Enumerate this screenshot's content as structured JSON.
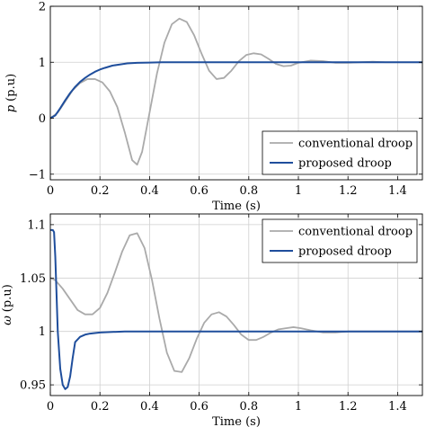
{
  "chart_data": [
    {
      "type": "line",
      "xlabel": "Time (s)",
      "ylabel": "p (p.u)",
      "ylabel_symbol": "p",
      "ylabel_unit": "(p.u)",
      "xlim": [
        0,
        1.5
      ],
      "ylim": [
        -1.1,
        2.0
      ],
      "xticks": [
        0,
        0.2,
        0.4,
        0.6,
        0.8,
        1,
        1.2,
        1.4
      ],
      "xtick_labels": [
        "0",
        "0.2",
        "0.4",
        "0.6",
        "0.8",
        "1",
        "1.2",
        "1.4"
      ],
      "yticks": [
        -1,
        0,
        1,
        2
      ],
      "ytick_labels": [
        "−1",
        "0",
        "1",
        "2"
      ],
      "grid": true,
      "legend_position": "bottom-right",
      "series": [
        {
          "name": "conventional droop",
          "color": "#aaaaaa",
          "x": [
            0,
            0.03,
            0.06,
            0.09,
            0.12,
            0.15,
            0.18,
            0.21,
            0.24,
            0.27,
            0.3,
            0.33,
            0.35,
            0.37,
            0.4,
            0.43,
            0.46,
            0.49,
            0.52,
            0.55,
            0.58,
            0.61,
            0.64,
            0.67,
            0.7,
            0.73,
            0.76,
            0.79,
            0.82,
            0.85,
            0.88,
            0.91,
            0.94,
            0.97,
            1.0,
            1.05,
            1.1,
            1.15,
            1.2,
            1.25,
            1.3,
            1.35,
            1.4,
            1.45,
            1.5
          ],
          "y": [
            0,
            0.1,
            0.3,
            0.5,
            0.63,
            0.7,
            0.7,
            0.64,
            0.48,
            0.2,
            -0.25,
            -0.75,
            -0.83,
            -0.6,
            0.1,
            0.8,
            1.35,
            1.68,
            1.78,
            1.72,
            1.48,
            1.15,
            0.85,
            0.7,
            0.72,
            0.85,
            1.02,
            1.13,
            1.16,
            1.14,
            1.06,
            0.97,
            0.93,
            0.94,
            0.99,
            1.03,
            1.02,
            0.99,
            0.99,
            1.0,
            1.01,
            1.0,
            1.0,
            1.0,
            1.0
          ]
        },
        {
          "name": "proposed droop",
          "color": "#1f4e9c",
          "x": [
            0,
            0.02,
            0.04,
            0.06,
            0.08,
            0.1,
            0.12,
            0.14,
            0.16,
            0.18,
            0.2,
            0.22,
            0.25,
            0.28,
            0.31,
            0.35,
            0.4,
            0.45,
            0.5,
            0.6,
            0.8,
            1.0,
            1.2,
            1.5
          ],
          "y": [
            0,
            0.05,
            0.18,
            0.32,
            0.45,
            0.56,
            0.65,
            0.72,
            0.78,
            0.83,
            0.87,
            0.9,
            0.94,
            0.96,
            0.98,
            0.99,
            0.995,
            1.0,
            1.0,
            1.0,
            1.0,
            1.0,
            1.0,
            1.0
          ]
        }
      ]
    },
    {
      "type": "line",
      "xlabel": "Time (s)",
      "ylabel": "ω (p.u)",
      "ylabel_symbol": "ω",
      "ylabel_unit": "(p.u)",
      "xlim": [
        0,
        1.5
      ],
      "ylim": [
        0.94,
        1.11
      ],
      "xticks": [
        0,
        0.2,
        0.4,
        0.6,
        0.8,
        1,
        1.2,
        1.4
      ],
      "xtick_labels": [
        "0",
        "0.2",
        "0.4",
        "0.6",
        "0.8",
        "1",
        "1.2",
        "1.4"
      ],
      "yticks": [
        0.95,
        1,
        1.05,
        1.1
      ],
      "ytick_labels": [
        "0.95",
        "1",
        "1.05",
        "1.1"
      ],
      "grid": true,
      "legend_position": "top-right",
      "series": [
        {
          "name": "conventional droop",
          "color": "#aaaaaa",
          "x": [
            0,
            0.02,
            0.05,
            0.08,
            0.11,
            0.14,
            0.17,
            0.2,
            0.23,
            0.26,
            0.29,
            0.32,
            0.35,
            0.38,
            0.41,
            0.44,
            0.47,
            0.5,
            0.53,
            0.56,
            0.59,
            0.62,
            0.65,
            0.68,
            0.71,
            0.74,
            0.77,
            0.8,
            0.83,
            0.86,
            0.89,
            0.92,
            0.95,
            0.98,
            1.01,
            1.05,
            1.1,
            1.15,
            1.2,
            1.25,
            1.3,
            1.35,
            1.4,
            1.5
          ],
          "y": [
            1.05,
            1.048,
            1.04,
            1.03,
            1.02,
            1.016,
            1.016,
            1.022,
            1.036,
            1.055,
            1.075,
            1.09,
            1.092,
            1.078,
            1.048,
            1.012,
            0.98,
            0.963,
            0.962,
            0.975,
            0.993,
            1.008,
            1.016,
            1.018,
            1.014,
            1.006,
            0.997,
            0.992,
            0.992,
            0.995,
            0.999,
            1.002,
            1.003,
            1.004,
            1.003,
            1.001,
            0.999,
            0.999,
            1.0,
            1.0,
            1.0,
            1.0,
            1.0,
            1.0
          ]
        },
        {
          "name": "proposed droop",
          "color": "#1f4e9c",
          "x": [
            0,
            0.01,
            0.015,
            0.02,
            0.03,
            0.04,
            0.05,
            0.06,
            0.07,
            0.08,
            0.09,
            0.1,
            0.12,
            0.14,
            0.16,
            0.2,
            0.25,
            0.3,
            0.4,
            0.5,
            0.7,
            1.0,
            1.2,
            1.5
          ],
          "y": [
            1.095,
            1.095,
            1.093,
            1.07,
            1.0,
            0.965,
            0.95,
            0.946,
            0.948,
            0.958,
            0.975,
            0.99,
            0.995,
            0.997,
            0.998,
            0.999,
            0.9995,
            1.0,
            1.0,
            1.0,
            1.0,
            1.0,
            1.0,
            1.0
          ]
        }
      ]
    }
  ]
}
